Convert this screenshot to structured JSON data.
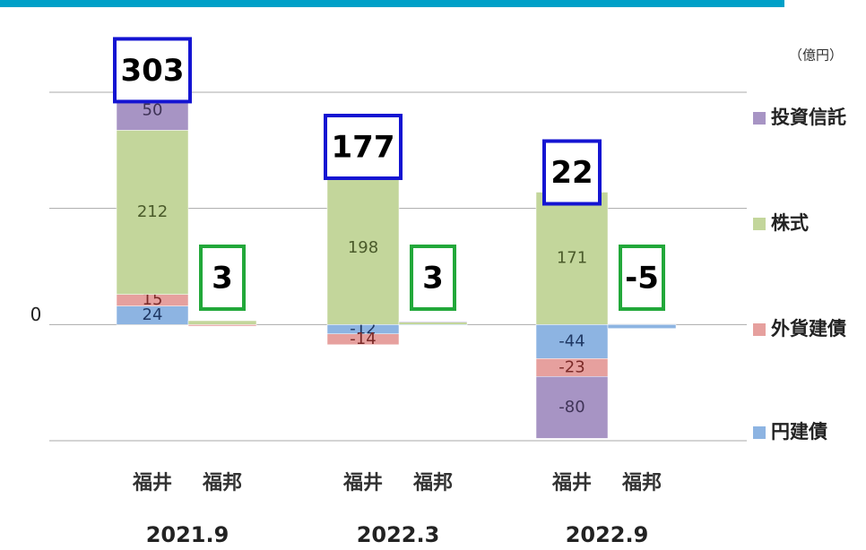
{
  "chart_data": {
    "type": "stacked_bar",
    "unit": "（億円）",
    "groups": [
      "2021.9",
      "2022.3",
      "2022.9"
    ],
    "categories": [
      "福井",
      "福邦",
      "福井",
      "福邦",
      "福井",
      "福邦"
    ],
    "series": [
      {
        "name": "円建債",
        "color": "#8db4e2",
        "label_color": "#1f3864",
        "values": [
          24,
          0,
          -12,
          -1,
          -44,
          -5
        ]
      },
      {
        "name": "外貨建債",
        "color": "#e6a09e",
        "label_color": "#7b2a28",
        "values": [
          15,
          -2,
          -14,
          0,
          -23,
          0
        ]
      },
      {
        "name": "株式",
        "color": "#c3d69b",
        "label_color": "#4a5a2a",
        "values": [
          212,
          5,
          198,
          3,
          171,
          0
        ]
      },
      {
        "name": "投資信託",
        "color": "#a794c4",
        "label_color": "#3f3357",
        "values": [
          50,
          0,
          6,
          1,
          -80,
          0
        ]
      }
    ],
    "labeled_bars": [
      true,
      false,
      true,
      false,
      true,
      false
    ],
    "totals": [
      303,
      3,
      177,
      3,
      22,
      -5
    ],
    "ylim": [
      -150,
      300
    ],
    "yticks": [
      -150,
      0,
      150,
      300
    ],
    "y_tick_labels_shown": [
      false,
      true,
      false,
      false
    ],
    "grid": true
  }
}
